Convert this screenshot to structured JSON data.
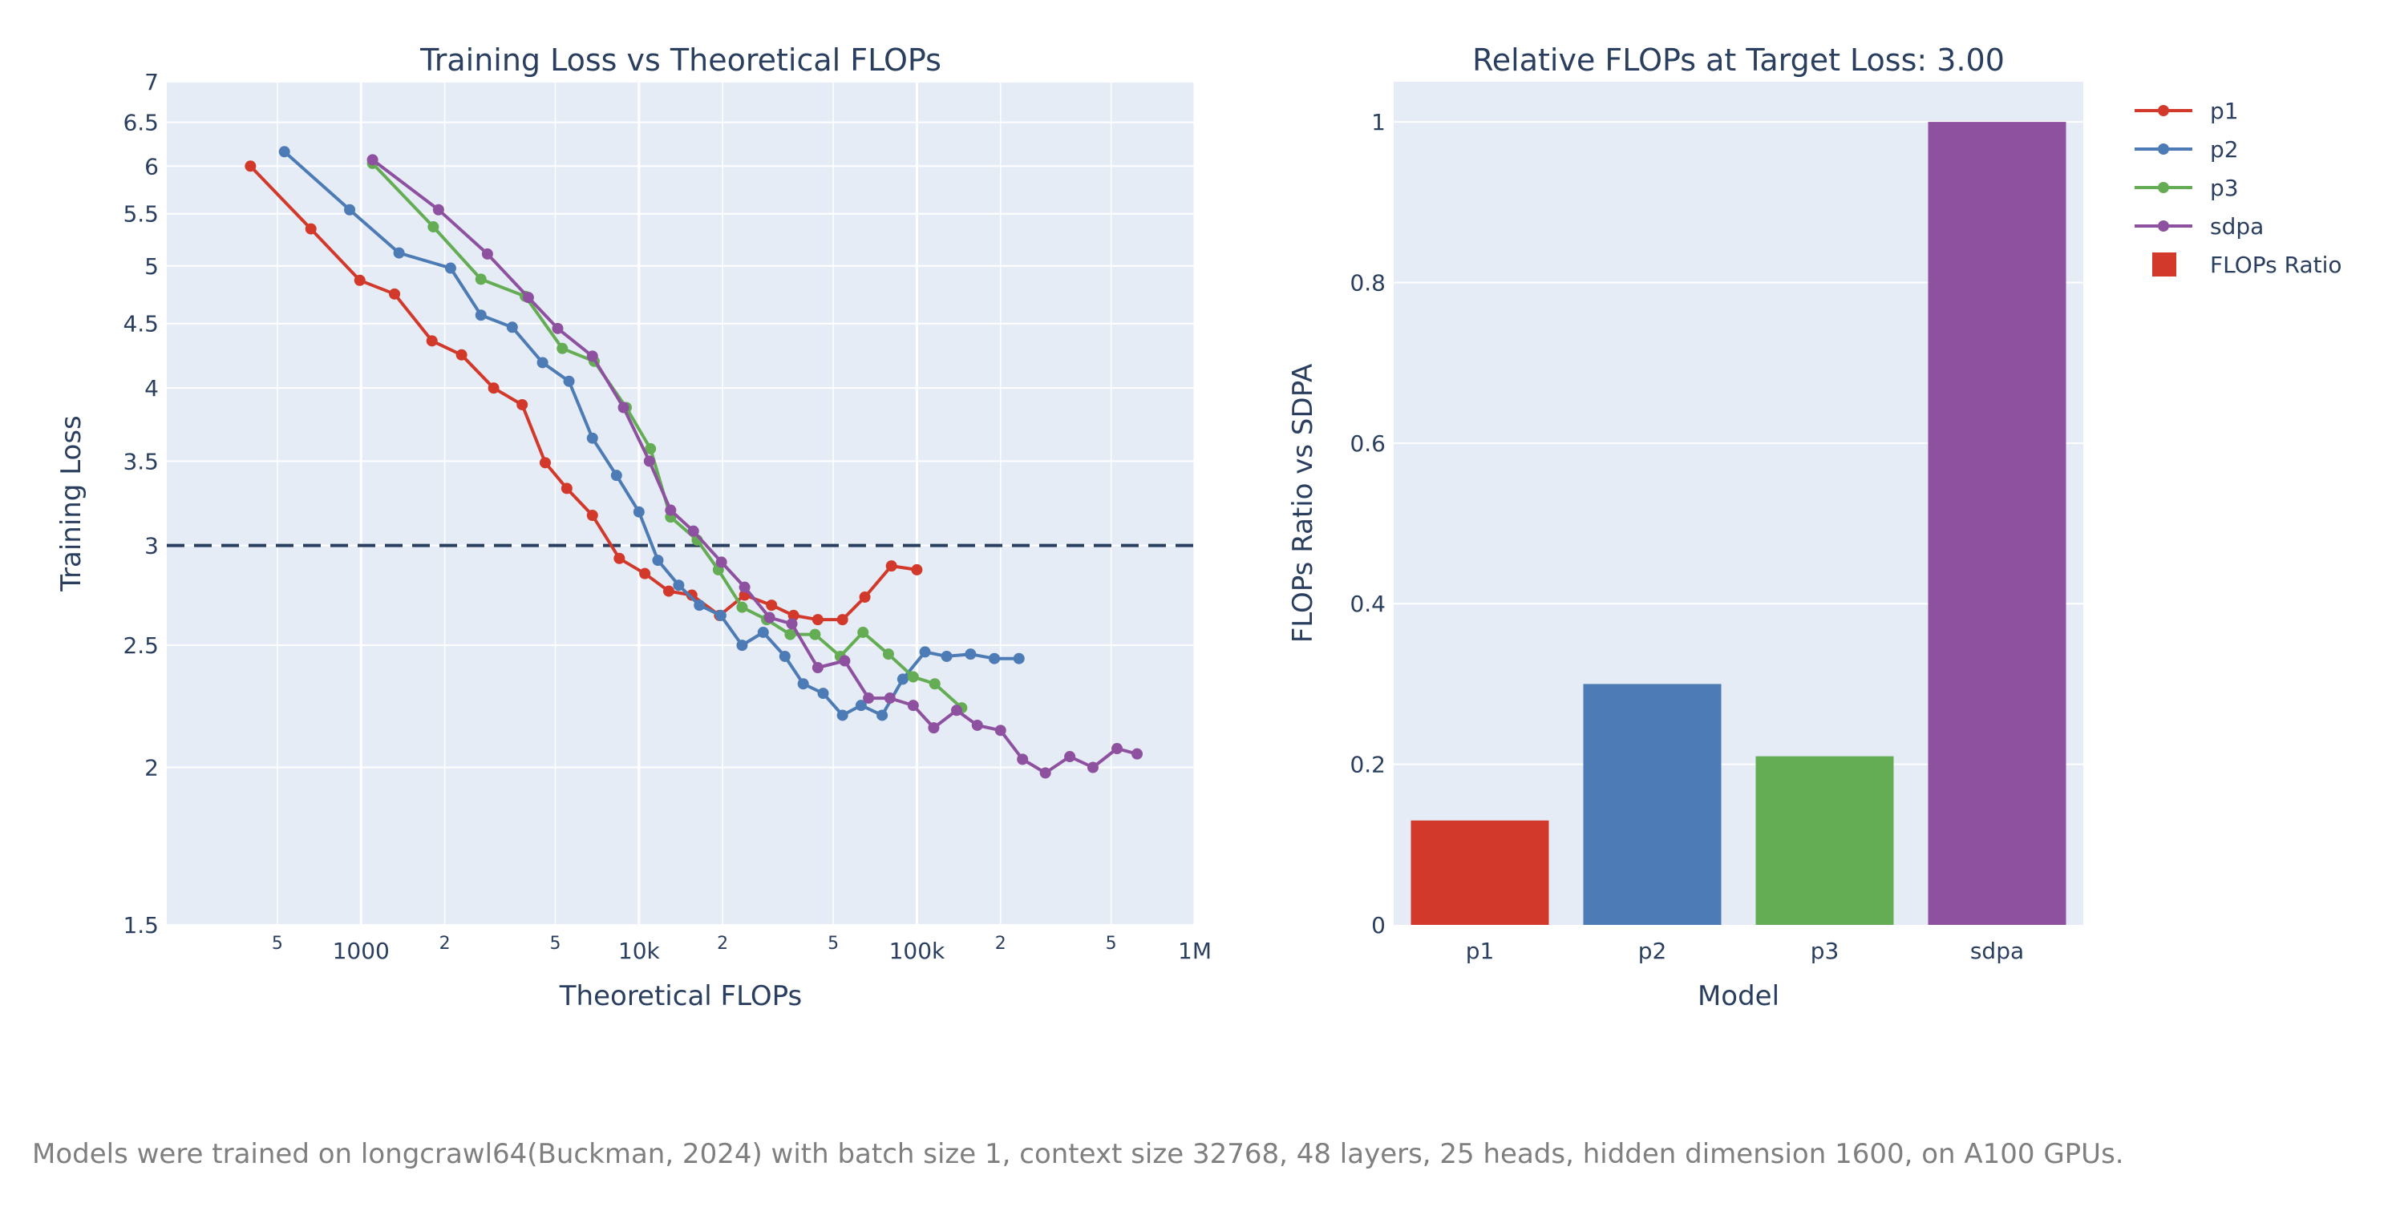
{
  "chart_data": [
    {
      "type": "line",
      "title": "Training Loss vs Theoretical FLOPs",
      "xlabel": "Theoretical FLOPs",
      "ylabel": "Training Loss",
      "xscale": "log",
      "yscale": "log",
      "xlim": [
        200,
        1000000
      ],
      "ylim": [
        1.5,
        7
      ],
      "x_major_ticks": [
        {
          "value": 1000,
          "label": "1000"
        },
        {
          "value": 10000,
          "label": "10k"
        },
        {
          "value": 100000,
          "label": "100k"
        },
        {
          "value": 1000000,
          "label": "1M"
        }
      ],
      "x_minor_ticks": [
        {
          "value": 500,
          "label": "5"
        },
        {
          "value": 2000,
          "label": "2"
        },
        {
          "value": 5000,
          "label": "5"
        },
        {
          "value": 20000,
          "label": "2"
        },
        {
          "value": 50000,
          "label": "5"
        },
        {
          "value": 200000,
          "label": "2"
        },
        {
          "value": 500000,
          "label": "5"
        }
      ],
      "y_ticks": [
        {
          "value": 1.5,
          "label": "1.5"
        },
        {
          "value": 2,
          "label": "2"
        },
        {
          "value": 2.5,
          "label": "2.5"
        },
        {
          "value": 3,
          "label": "3"
        },
        {
          "value": 3.5,
          "label": "3.5"
        },
        {
          "value": 4,
          "label": "4"
        },
        {
          "value": 4.5,
          "label": "4.5"
        },
        {
          "value": 5,
          "label": "5"
        },
        {
          "value": 5.5,
          "label": "5.5"
        },
        {
          "value": 6,
          "label": "6"
        },
        {
          "value": 6.5,
          "label": "6.5"
        },
        {
          "value": 7,
          "label": "7"
        }
      ],
      "reference_line": {
        "y": 3.0,
        "style": "dashed"
      },
      "series": [
        {
          "name": "p1",
          "color": "#d2392a",
          "x": [
            400,
            660,
            990,
            1320,
            1800,
            2300,
            3000,
            3800,
            4600,
            5500,
            6800,
            8500,
            10500,
            12800,
            15500,
            19500,
            24000,
            30000,
            36000,
            44000,
            54000,
            65000,
            81000,
            100000
          ],
          "y": [
            6.0,
            5.35,
            4.87,
            4.75,
            4.36,
            4.25,
            4.0,
            3.88,
            3.49,
            3.33,
            3.17,
            2.93,
            2.85,
            2.76,
            2.74,
            2.64,
            2.74,
            2.69,
            2.64,
            2.62,
            2.62,
            2.73,
            2.89,
            2.87
          ]
        },
        {
          "name": "p2",
          "color": "#4c7bb5",
          "x": [
            530,
            910,
            1370,
            2100,
            2700,
            3500,
            4500,
            5600,
            6800,
            8300,
            10000,
            11700,
            13900,
            16500,
            19700,
            23500,
            28000,
            33500,
            39000,
            46000,
            54000,
            63000,
            75000,
            89000,
            107000,
            128000,
            156000,
            190000,
            233000
          ],
          "y": [
            6.16,
            5.54,
            5.12,
            4.98,
            4.57,
            4.47,
            4.19,
            4.05,
            3.65,
            3.41,
            3.19,
            2.92,
            2.79,
            2.69,
            2.64,
            2.5,
            2.56,
            2.45,
            2.33,
            2.29,
            2.2,
            2.24,
            2.2,
            2.35,
            2.47,
            2.45,
            2.46,
            2.44,
            2.44
          ]
        },
        {
          "name": "p3",
          "color": "#65ad54",
          "x": [
            1100,
            1820,
            2700,
            3900,
            5300,
            6900,
            9000,
            11000,
            13000,
            16200,
            19300,
            23500,
            28800,
            35000,
            43000,
            53000,
            64000,
            79000,
            97000,
            116000,
            145000
          ],
          "y": [
            6.03,
            5.37,
            4.88,
            4.73,
            4.3,
            4.2,
            3.86,
            3.58,
            3.16,
            3.03,
            2.87,
            2.68,
            2.62,
            2.55,
            2.55,
            2.45,
            2.56,
            2.46,
            2.36,
            2.33,
            2.23
          ]
        },
        {
          "name": "sdpa",
          "color": "#8e51a0",
          "x": [
            1100,
            1900,
            2850,
            4000,
            5100,
            6800,
            8800,
            10900,
            13000,
            15700,
            19800,
            24000,
            29500,
            35500,
            44000,
            55000,
            67000,
            80000,
            97000,
            115000,
            139000,
            165000,
            200000,
            240000,
            290000,
            355000,
            430000,
            525000,
            620000
          ],
          "y": [
            6.07,
            5.54,
            5.11,
            4.72,
            4.46,
            4.24,
            3.86,
            3.5,
            3.2,
            3.08,
            2.91,
            2.78,
            2.63,
            2.6,
            2.4,
            2.43,
            2.27,
            2.27,
            2.24,
            2.15,
            2.22,
            2.16,
            2.14,
            2.03,
            1.98,
            2.04,
            2.0,
            2.07,
            2.05
          ]
        }
      ]
    },
    {
      "type": "bar",
      "title": "Relative FLOPs at Target Loss: 3.00",
      "xlabel": "Model",
      "ylabel": "FLOPs Ratio vs SDPA",
      "ylim": [
        0,
        1.05
      ],
      "y_ticks": [
        {
          "value": 0,
          "label": "0"
        },
        {
          "value": 0.2,
          "label": "0.2"
        },
        {
          "value": 0.4,
          "label": "0.4"
        },
        {
          "value": 0.6,
          "label": "0.6"
        },
        {
          "value": 0.8,
          "label": "0.8"
        },
        {
          "value": 1,
          "label": "1"
        }
      ],
      "categories": [
        "p1",
        "p2",
        "p3",
        "sdpa"
      ],
      "values": [
        0.13,
        0.3,
        0.21,
        1.0
      ],
      "colors": [
        "#d2392a",
        "#4c7bb5",
        "#65ad54",
        "#8e51a0"
      ]
    }
  ],
  "legend": {
    "placement": "top-right",
    "items": [
      {
        "label": "p1",
        "color": "#d2392a",
        "kind": "line"
      },
      {
        "label": "p2",
        "color": "#4c7bb5",
        "kind": "line"
      },
      {
        "label": "p3",
        "color": "#65ad54",
        "kind": "line"
      },
      {
        "label": "sdpa",
        "color": "#8e51a0",
        "kind": "line"
      },
      {
        "label": "FLOPs Ratio",
        "color": "#d2392a",
        "kind": "square"
      }
    ]
  },
  "caption": "Models were trained on longcrawl64(Buckman, 2024) with batch size 1, context size 32768, 48 layers, 25 heads, hidden dimension 1600, on A100 GPUs."
}
